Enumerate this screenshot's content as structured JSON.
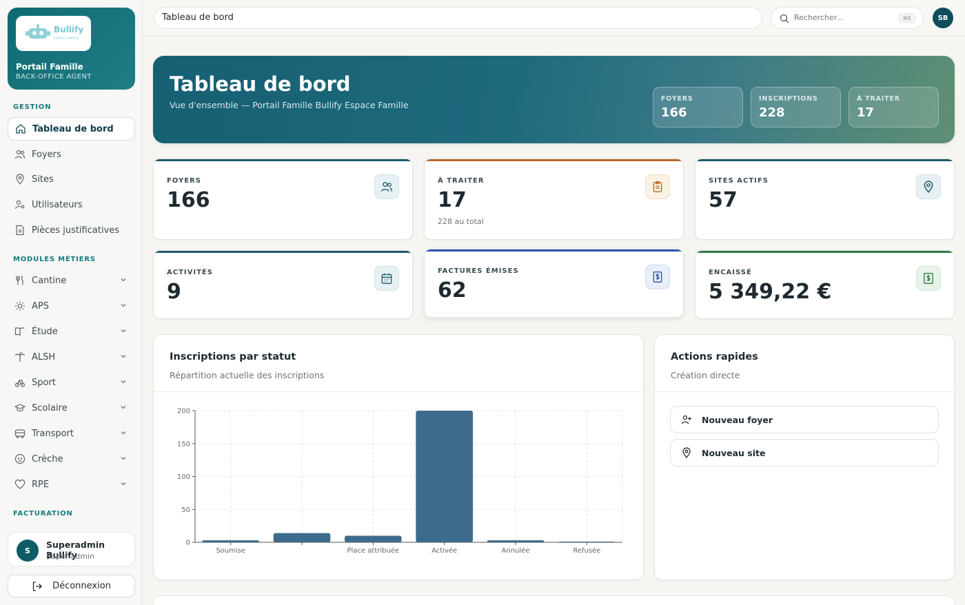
{
  "brand": {
    "logo_text": "Bullify",
    "logo_sub": "ESPACE FAMILLE",
    "title": "Portail Famille",
    "subtitle": "BACK-OFFICE AGENT"
  },
  "sidebar": {
    "section_gestion": "GESTION",
    "gestion_items": [
      {
        "label": "Tableau de bord",
        "icon": "home-icon",
        "active": true
      },
      {
        "label": "Foyers",
        "icon": "users-icon"
      },
      {
        "label": "Sites",
        "icon": "map-pin-icon"
      },
      {
        "label": "Utilisateurs",
        "icon": "user-key-icon"
      },
      {
        "label": "Pièces justificatives",
        "icon": "file-text-icon"
      }
    ],
    "section_modules": "MODULES MÉTIERS",
    "module_items": [
      {
        "label": "Cantine",
        "icon": "utensils-icon"
      },
      {
        "label": "APS",
        "icon": "sun-icon"
      },
      {
        "label": "Étude",
        "icon": "book-open-icon"
      },
      {
        "label": "ALSH",
        "icon": "palm-tree-icon"
      },
      {
        "label": "Sport",
        "icon": "bike-icon"
      },
      {
        "label": "Scolaire",
        "icon": "graduation-cap-icon"
      },
      {
        "label": "Transport",
        "icon": "bus-icon"
      },
      {
        "label": "Crèche",
        "icon": "baby-icon"
      },
      {
        "label": "RPE",
        "icon": "heart-icon"
      }
    ],
    "section_facturation": "FACTURATION",
    "user": {
      "initial": "S",
      "name": "Superadmin Bullify",
      "role": "Super-admin"
    },
    "logout_label": "Déconnexion"
  },
  "topbar": {
    "breadcrumb": "Tableau de bord",
    "search_placeholder": "Rechercher...",
    "search_shortcut": "⌘K",
    "avatar_initials": "SB"
  },
  "hero": {
    "title": "Tableau de bord",
    "subtitle": "Vue d'ensemble — Portail Famille Bullify Espace Famille",
    "stats": [
      {
        "label": "FOYERS",
        "value": "166"
      },
      {
        "label": "INSCRIPTIONS",
        "value": "228"
      },
      {
        "label": "À TRAITER",
        "value": "17"
      }
    ]
  },
  "cards": [
    {
      "label": "FOYERS",
      "value": "166",
      "sub": "",
      "color": "#1c5a6a",
      "icon": "users-icon"
    },
    {
      "label": "À TRAITER",
      "value": "17",
      "sub": "228 au total",
      "color": "#b56a2a",
      "icon": "clipboard-icon"
    },
    {
      "label": "SITES ACTIFS",
      "value": "57",
      "sub": "",
      "color": "#1c5a6a",
      "icon": "map-pin-icon"
    },
    {
      "label": "ACTIVITÉS",
      "value": "9",
      "sub": "",
      "color": "#1c5a6a",
      "icon": "calendar-icon"
    },
    {
      "label": "FACTURES ÉMISES",
      "value": "62",
      "sub": "",
      "color": "#2d55b0",
      "icon": "invoice-dollar-icon"
    },
    {
      "label": "ENCAISSÉ",
      "value": "5 349,22 €",
      "sub": "",
      "color": "#2f7d45",
      "icon": "cash-dollar-icon"
    }
  ],
  "chart_panel": {
    "title": "Inscriptions par statut",
    "subtitle": "Répartition actuelle des inscriptions"
  },
  "chart_data": {
    "type": "bar",
    "categories": [
      "Soumise",
      "",
      "Place attribuée",
      "Activée",
      "Annulée",
      "Refusée"
    ],
    "values": [
      3,
      14,
      10,
      200,
      3,
      1
    ],
    "ylim": [
      0,
      200
    ],
    "yticks": [
      0,
      50,
      100,
      150,
      200
    ],
    "grid": true,
    "bar_color": "#3d6b8c"
  },
  "quick_actions": {
    "title": "Actions rapides",
    "subtitle": "Création directe",
    "buttons": [
      {
        "label": "Nouveau foyer",
        "icon": "user-plus-icon"
      },
      {
        "label": "Nouveau site",
        "icon": "map-pin-icon"
      }
    ]
  }
}
